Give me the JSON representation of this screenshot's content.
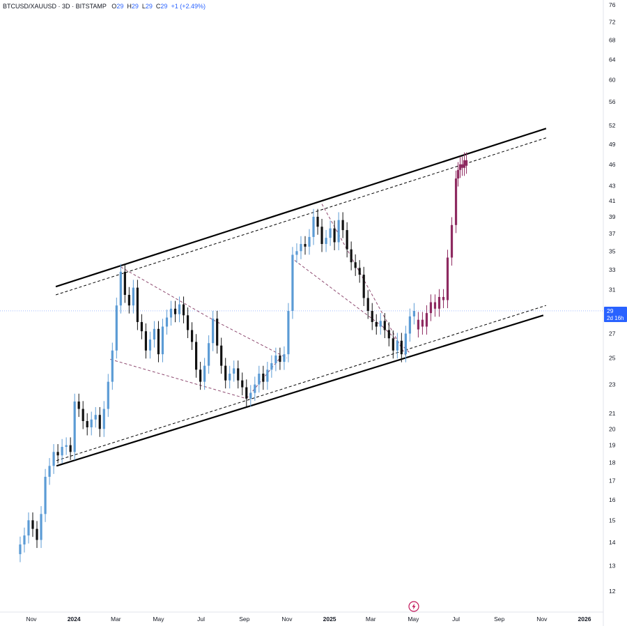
{
  "header": {
    "symbol": "BTCUSD/XAUUSD",
    "sep1": "·",
    "interval": "3D",
    "sep2": "·",
    "exchange": "BITSTAMP",
    "o_label": "O",
    "o_value": "29",
    "h_label": "H",
    "h_value": "29",
    "l_label": "L",
    "l_value": "29",
    "c_label": "C",
    "c_value": "29",
    "change": "+1 (+2.49%)"
  },
  "price_badge": {
    "value": "29",
    "countdown": "2d 16h",
    "color": "#2962ff"
  },
  "colors": {
    "up": "#5b9bd5",
    "down": "#111111",
    "projection": "#8e2a60",
    "pattern": "#8e4a70",
    "channel": "#000000",
    "current_price_line": "#2962ff"
  },
  "icons": {
    "lightning": "lightning-icon"
  },
  "chart_data": {
    "type": "candlestick",
    "title": "",
    "y_scale": "log",
    "ylim": [
      11.5,
      77
    ],
    "y_ticks": [
      12,
      13,
      14,
      15,
      16,
      17,
      18,
      19,
      20,
      21,
      23,
      25,
      27,
      29,
      31,
      33,
      35,
      37,
      39,
      41,
      43,
      46,
      49,
      52,
      56,
      60,
      64,
      68,
      72,
      76
    ],
    "x_ticks": [
      {
        "label": "Nov",
        "date": "2023-11-01"
      },
      {
        "label": "2024",
        "date": "2024-01-01",
        "bold": true
      },
      {
        "label": "Mar",
        "date": "2024-03-01"
      },
      {
        "label": "May",
        "date": "2024-05-01"
      },
      {
        "label": "Jul",
        "date": "2024-07-01"
      },
      {
        "label": "Sep",
        "date": "2024-09-01"
      },
      {
        "label": "Nov",
        "date": "2024-11-01"
      },
      {
        "label": "2025",
        "date": "2025-01-01",
        "bold": true
      },
      {
        "label": "Mar",
        "date": "2025-03-01"
      },
      {
        "label": "May",
        "date": "2025-05-01"
      },
      {
        "label": "Jul",
        "date": "2025-07-01"
      },
      {
        "label": "Sep",
        "date": "2025-09-01"
      },
      {
        "label": "Nov",
        "date": "2025-11-01"
      },
      {
        "label": "2026",
        "date": "2026-01-01",
        "bold": true
      }
    ],
    "series": [
      {
        "name": "BTCUSD/XAUUSD",
        "kind": "history",
        "points": [
          [
            "2023-10-16",
            13.9
          ],
          [
            "2023-10-22",
            14.3
          ],
          [
            "2023-10-28",
            15.0
          ],
          [
            "2023-11-03",
            14.6
          ],
          [
            "2023-11-09",
            14.1
          ],
          [
            "2023-11-15",
            15.3
          ],
          [
            "2023-11-21",
            17.2
          ],
          [
            "2023-11-27",
            17.8
          ],
          [
            "2023-12-03",
            18.6
          ],
          [
            "2023-12-09",
            18.4
          ],
          [
            "2023-12-15",
            18.9
          ],
          [
            "2023-12-21",
            19.0
          ],
          [
            "2023-12-27",
            18.6
          ],
          [
            "2024-01-02",
            21.8
          ],
          [
            "2024-01-08",
            21.3
          ],
          [
            "2024-01-14",
            20.5
          ],
          [
            "2024-01-20",
            20.1
          ],
          [
            "2024-01-26",
            20.6
          ],
          [
            "2024-02-01",
            20.9
          ],
          [
            "2024-02-07",
            20.0
          ],
          [
            "2024-02-13",
            21.3
          ],
          [
            "2024-02-19",
            23.2
          ],
          [
            "2024-02-25",
            25.6
          ],
          [
            "2024-03-02",
            29.5
          ],
          [
            "2024-03-08",
            32.8
          ],
          [
            "2024-03-14",
            30.5
          ],
          [
            "2024-03-20",
            29.5
          ],
          [
            "2024-03-26",
            31.2
          ],
          [
            "2024-04-01",
            28.0
          ],
          [
            "2024-04-07",
            27.2
          ],
          [
            "2024-04-13",
            25.6
          ],
          [
            "2024-04-19",
            26.5
          ],
          [
            "2024-04-25",
            27.4
          ],
          [
            "2024-05-01",
            25.3
          ],
          [
            "2024-05-07",
            27.6
          ],
          [
            "2024-05-13",
            28.4
          ],
          [
            "2024-05-19",
            29.2
          ],
          [
            "2024-05-25",
            28.7
          ],
          [
            "2024-05-31",
            29.6
          ],
          [
            "2024-06-06",
            28.6
          ],
          [
            "2024-06-12",
            27.3
          ],
          [
            "2024-06-18",
            26.3
          ],
          [
            "2024-06-24",
            24.1
          ],
          [
            "2024-06-30",
            23.2
          ],
          [
            "2024-07-06",
            24.4
          ],
          [
            "2024-07-12",
            26.2
          ],
          [
            "2024-07-18",
            28.3
          ],
          [
            "2024-07-24",
            26.0
          ],
          [
            "2024-07-30",
            24.4
          ],
          [
            "2024-08-05",
            23.3
          ],
          [
            "2024-08-11",
            23.8
          ],
          [
            "2024-08-17",
            24.2
          ],
          [
            "2024-08-23",
            23.3
          ],
          [
            "2024-08-29",
            22.8
          ],
          [
            "2024-09-04",
            22.0
          ],
          [
            "2024-09-10",
            22.4
          ],
          [
            "2024-09-16",
            23.0
          ],
          [
            "2024-09-22",
            23.8
          ],
          [
            "2024-09-28",
            23.2
          ],
          [
            "2024-10-04",
            24.1
          ],
          [
            "2024-10-10",
            24.6
          ],
          [
            "2024-10-16",
            25.2
          ],
          [
            "2024-10-22",
            24.7
          ],
          [
            "2024-10-28",
            25.3
          ],
          [
            "2024-11-03",
            29.0
          ],
          [
            "2024-11-09",
            34.6
          ],
          [
            "2024-11-15",
            35.0
          ],
          [
            "2024-11-21",
            35.8
          ],
          [
            "2024-11-27",
            35.5
          ],
          [
            "2024-12-03",
            36.6
          ],
          [
            "2024-12-09",
            39.0
          ],
          [
            "2024-12-15",
            37.8
          ],
          [
            "2024-12-21",
            35.8
          ],
          [
            "2024-12-27",
            36.5
          ],
          [
            "2025-01-02",
            37.6
          ],
          [
            "2025-01-08",
            36.0
          ],
          [
            "2025-01-14",
            38.6
          ],
          [
            "2025-01-20",
            37.4
          ],
          [
            "2025-01-26",
            35.2
          ],
          [
            "2025-02-01",
            33.8
          ],
          [
            "2025-02-07",
            33.2
          ],
          [
            "2025-02-13",
            32.5
          ],
          [
            "2025-02-19",
            30.2
          ],
          [
            "2025-02-25",
            29.0
          ],
          [
            "2025-03-03",
            28.0
          ],
          [
            "2025-03-09",
            27.6
          ],
          [
            "2025-03-15",
            28.1
          ],
          [
            "2025-03-21",
            27.3
          ],
          [
            "2025-03-27",
            26.6
          ],
          [
            "2025-04-02",
            25.6
          ],
          [
            "2025-04-08",
            26.4
          ],
          [
            "2025-04-14",
            25.3
          ],
          [
            "2025-04-20",
            27.0
          ],
          [
            "2025-04-26",
            28.5
          ],
          [
            "2025-05-02",
            29.0
          ]
        ]
      },
      {
        "name": "Projection",
        "kind": "projection",
        "points": [
          [
            "2025-05-08",
            28.2
          ],
          [
            "2025-05-14",
            27.6
          ],
          [
            "2025-05-20",
            28.8
          ],
          [
            "2025-05-26",
            29.8
          ],
          [
            "2025-06-01",
            29.2
          ],
          [
            "2025-06-07",
            30.3
          ],
          [
            "2025-06-13",
            30.0
          ],
          [
            "2025-06-19",
            34.3
          ],
          [
            "2025-06-25",
            38.0
          ],
          [
            "2025-07-01",
            44.0
          ],
          [
            "2025-07-04",
            45.2
          ],
          [
            "2025-07-07",
            46.0
          ],
          [
            "2025-07-10",
            45.5
          ],
          [
            "2025-07-13",
            46.6
          ],
          [
            "2025-07-16",
            45.8
          ]
        ]
      }
    ],
    "channel": {
      "upper": [
        [
          "2023-12-06",
          31.3
        ],
        [
          "2025-11-07",
          51.5
        ]
      ],
      "upper_inner": [
        [
          "2023-12-06",
          30.5
        ],
        [
          "2025-11-07",
          50.0
        ]
      ],
      "lower": [
        [
          "2023-12-07",
          17.8
        ],
        [
          "2025-11-03",
          28.6
        ]
      ],
      "lower_inner": [
        [
          "2023-12-07",
          18.1
        ],
        [
          "2025-11-07",
          29.5
        ]
      ]
    },
    "patterns": [
      [
        [
          "2024-03-08",
          33.3
        ],
        [
          "2024-07-18",
          28.2
        ]
      ],
      [
        [
          "2024-07-18",
          28.2
        ],
        [
          "2024-11-01",
          25.0
        ]
      ],
      [
        [
          "2024-02-22",
          24.9
        ],
        [
          "2024-09-04",
          22.0
        ]
      ],
      [
        [
          "2024-09-04",
          22.0
        ],
        [
          "2024-10-22",
          25.0
        ]
      ],
      [
        [
          "2024-12-21",
          40.6
        ],
        [
          "2025-04-22",
          25.0
        ]
      ],
      [
        [
          "2024-11-12",
          34.0
        ],
        [
          "2025-03-18",
          27.6
        ]
      ],
      [
        [
          "2025-03-18",
          27.6
        ],
        [
          "2025-04-26",
          25.4
        ]
      ]
    ],
    "current_price": 29
  }
}
